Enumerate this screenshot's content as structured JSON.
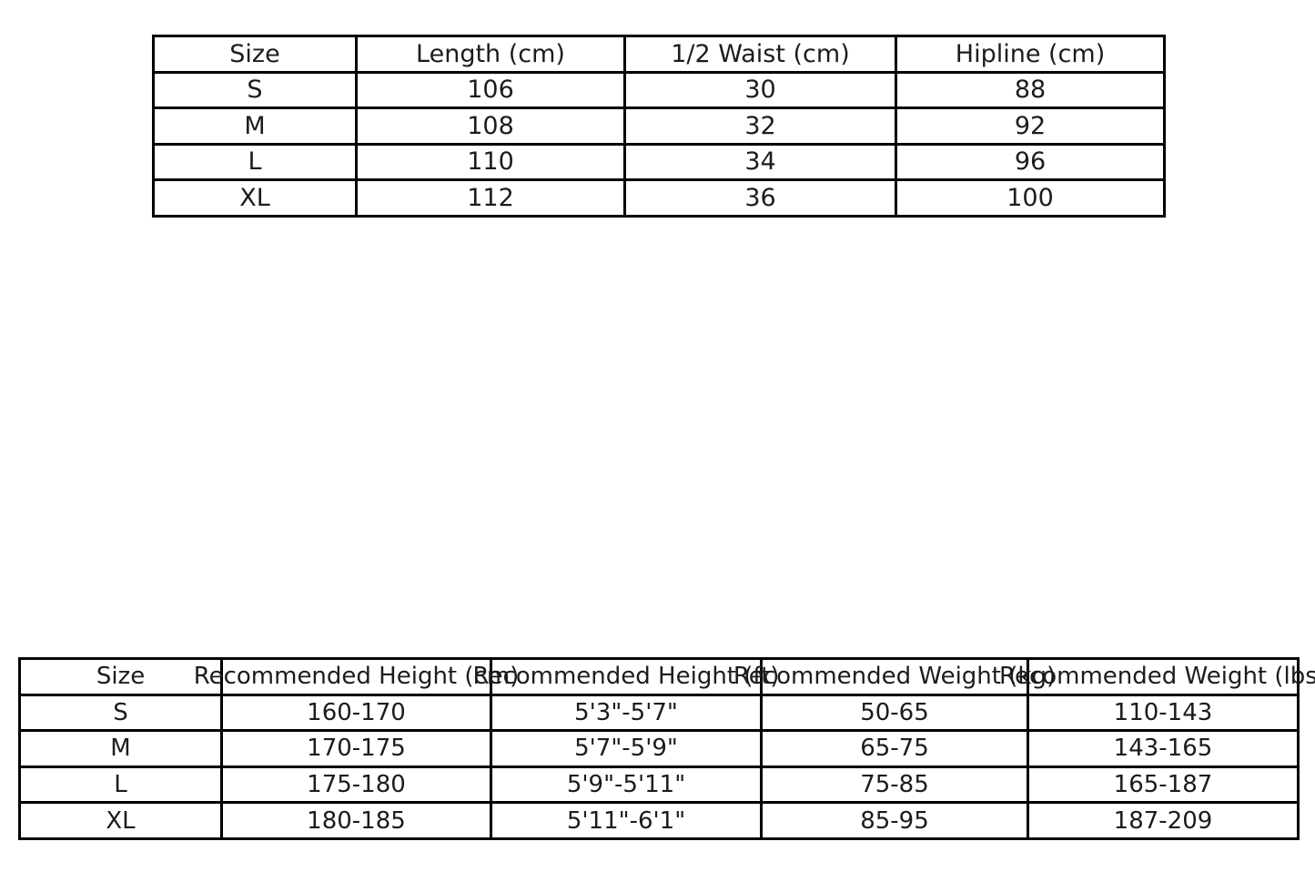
{
  "colors": {
    "background": "#ffffff",
    "border": "#000000",
    "text": "#1c1c1c"
  },
  "chart_data": [
    {
      "type": "table",
      "title": "",
      "legend": "none",
      "grid": "cell-borders",
      "columns": [
        "Size",
        "Length (cm)",
        "1/2 Waist (cm)",
        "Hipline (cm)"
      ],
      "rows": [
        [
          "S",
          "106",
          "30",
          "88"
        ],
        [
          "M",
          "108",
          "32",
          "92"
        ],
        [
          "L",
          "110",
          "34",
          "96"
        ],
        [
          "XL",
          "112",
          "36",
          "100"
        ]
      ]
    },
    {
      "type": "table",
      "title": "",
      "legend": "none",
      "grid": "cell-borders",
      "columns": [
        "Size",
        "Recommended Height (cm)",
        "Recommended Height (ft)",
        "Recommended Weight (kg)",
        "Recommended Weight (lbs)"
      ],
      "rows": [
        [
          "S",
          "160-170",
          "5'3\"-5'7\"",
          "50-65",
          "110-143"
        ],
        [
          "M",
          "170-175",
          "5'7\"-5'9\"",
          "65-75",
          "143-165"
        ],
        [
          "L",
          "175-180",
          "5'9\"-5'11\"",
          "75-85",
          "165-187"
        ],
        [
          "XL",
          "180-185",
          "5'11\"-6'1\"",
          "85-95",
          "187-209"
        ]
      ]
    }
  ]
}
